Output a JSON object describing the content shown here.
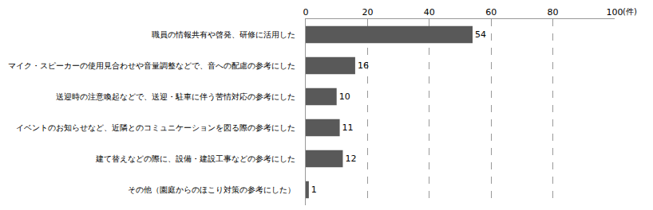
{
  "chart_data": {
    "type": "bar",
    "orientation": "horizontal",
    "categories": [
      "職員の情報共有や啓発、研修に活用した",
      "マイク・スピーカーの使用見合わせや音量調整などで、音への配慮の参考にした",
      "送迎時の注意喚起などで、送迎・駐車に伴う苦情対応の参考にした",
      "イベントのお知らせなど、近隣とのコミュニケーションを図る際の参考にした",
      "建て替えなどの際に、設備・建設工事などの参考にした",
      "その他（園庭からのほこり対策の参考にした）"
    ],
    "values": [
      54,
      16,
      10,
      11,
      12,
      1
    ],
    "color": "#595959",
    "xlabel": "(件)",
    "xlim": [
      0,
      100
    ],
    "xticks": [
      0,
      20,
      40,
      60,
      80,
      100
    ],
    "grid": true,
    "data_labels": true
  }
}
